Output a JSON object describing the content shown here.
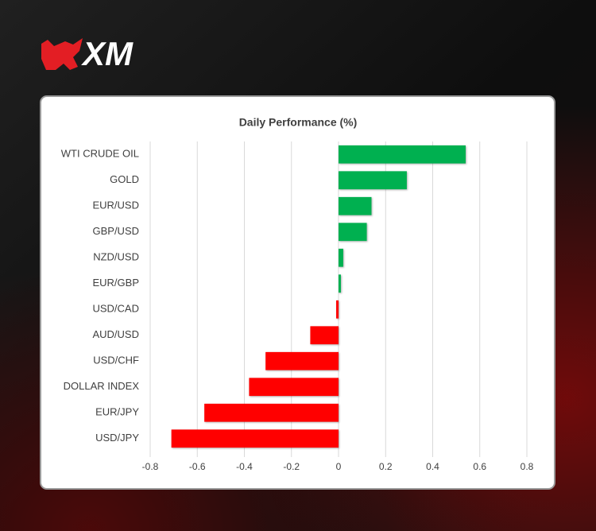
{
  "logo": "XM",
  "chart_data": {
    "type": "hbar",
    "title": "Daily Performance (%)",
    "categories": [
      "WTI CRUDE OIL",
      "GOLD",
      "EUR/USD",
      "GBP/USD",
      "NZD/USD",
      "EUR/GBP",
      "USD/CAD",
      "AUD/USD",
      "USD/CHF",
      "DOLLAR INDEX",
      "EUR/JPY",
      "USD/JPY"
    ],
    "values": [
      0.54,
      0.29,
      0.14,
      0.12,
      0.02,
      0.01,
      -0.01,
      -0.12,
      -0.31,
      -0.38,
      -0.57,
      -0.71
    ],
    "positive_color": "#00b050",
    "negative_color": "#ff0000",
    "xlim": [
      -0.8,
      0.8
    ],
    "xticks": [
      -0.8,
      -0.6,
      -0.4,
      -0.2,
      0,
      0.2,
      0.4,
      0.6,
      0.8
    ],
    "grid": true
  }
}
